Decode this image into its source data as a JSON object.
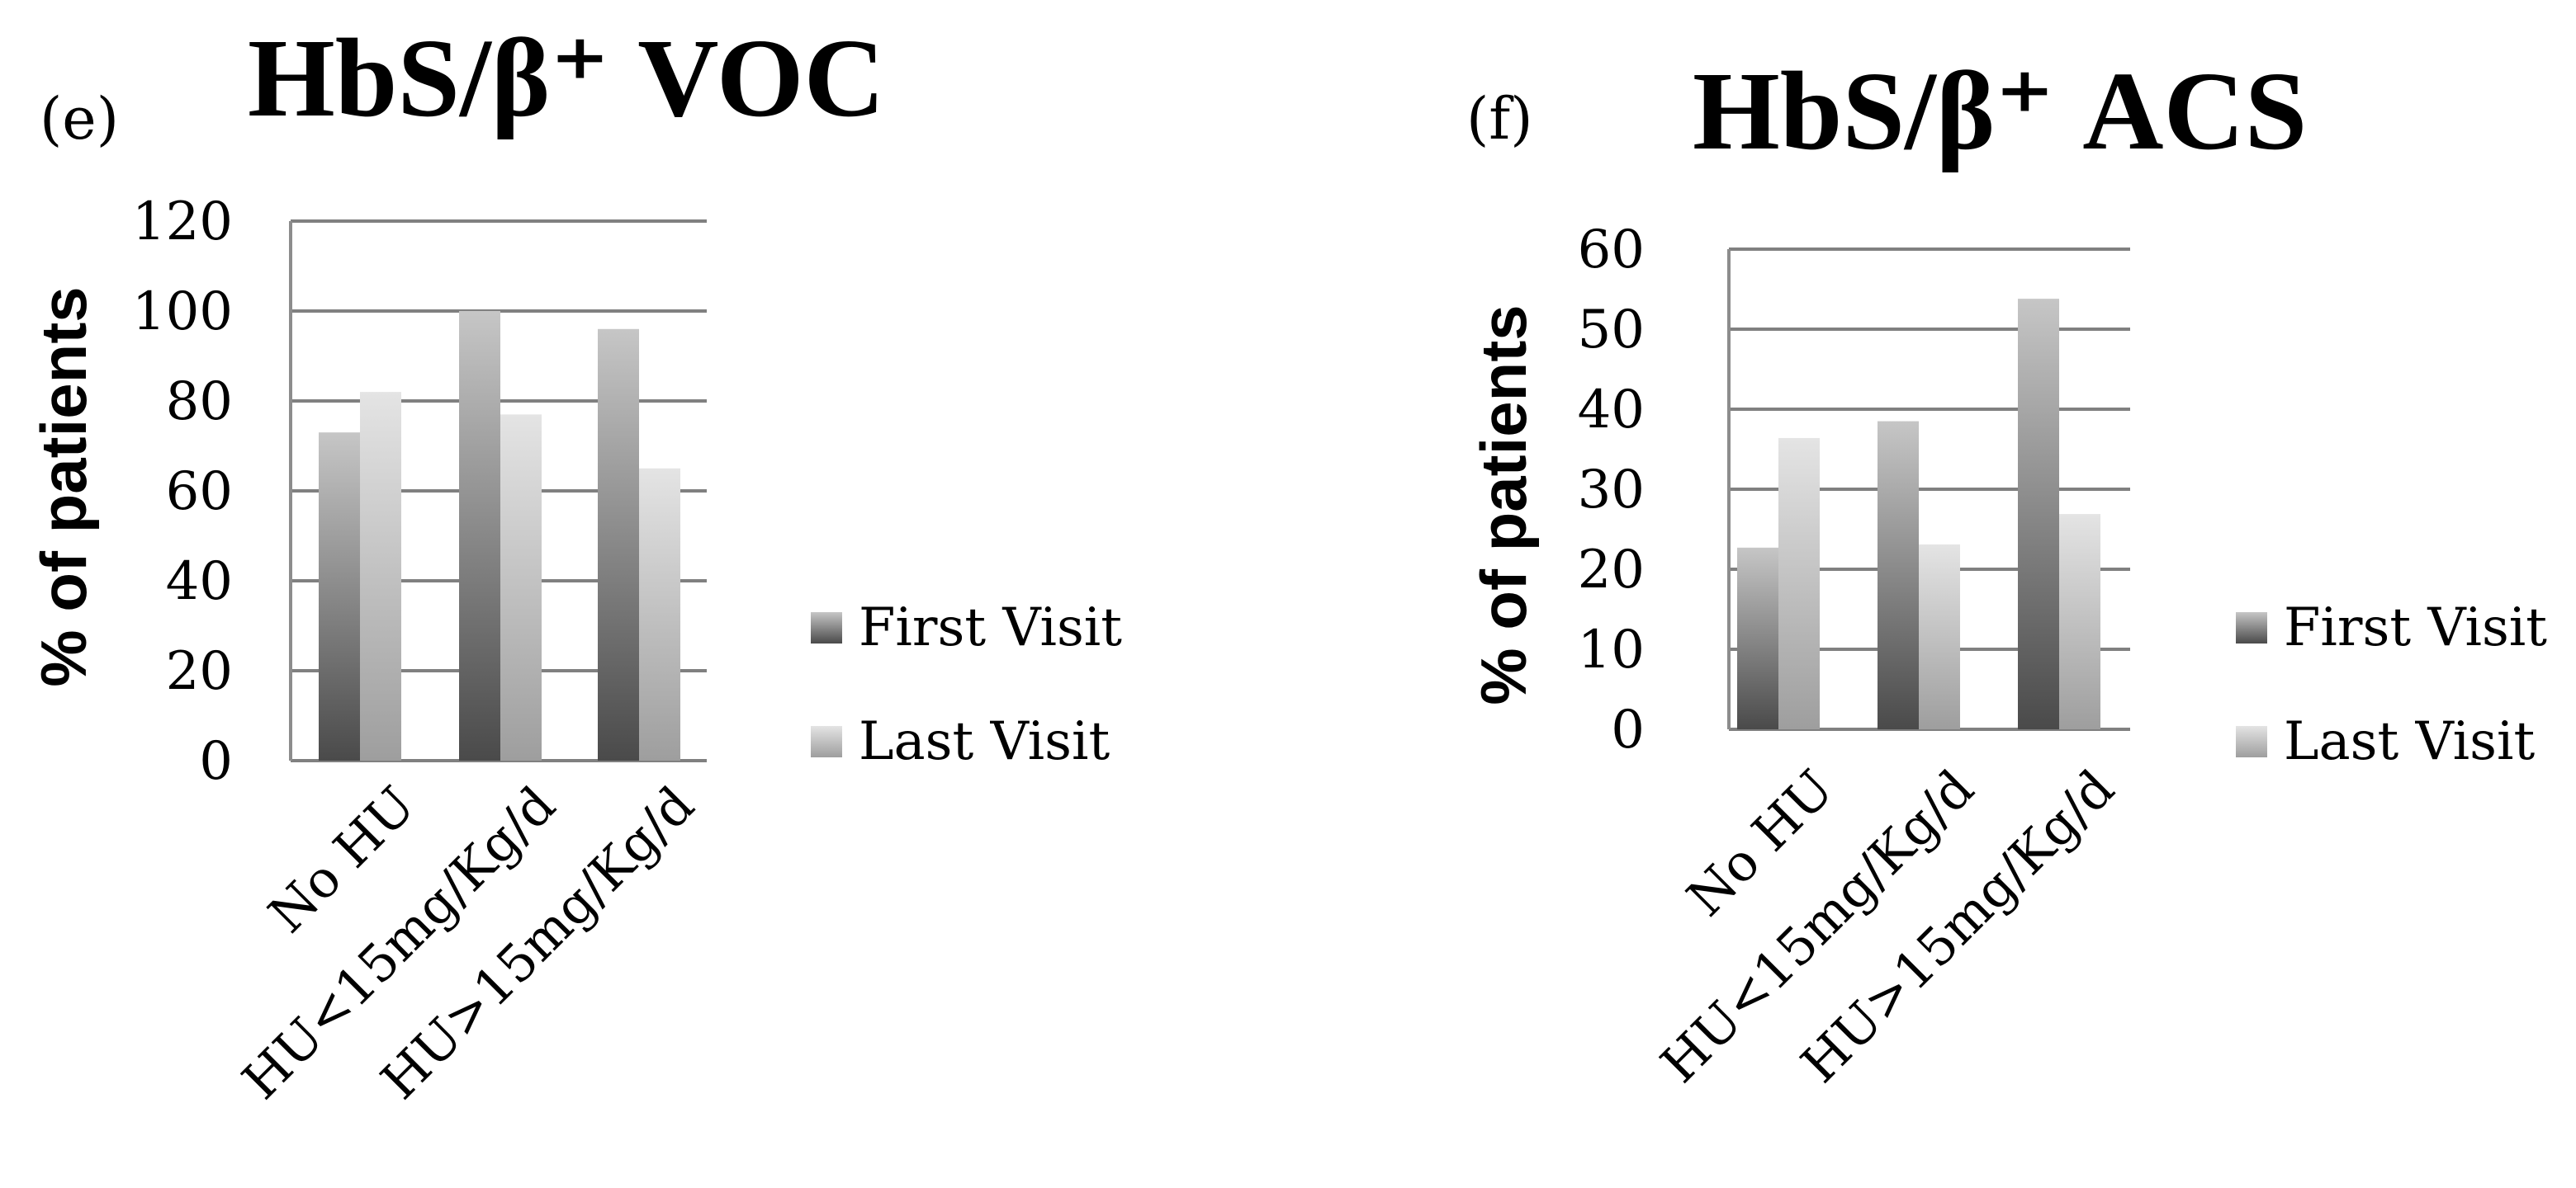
{
  "legend": {
    "first_label": "First Visit",
    "last_label": "Last Visit"
  },
  "colors": {
    "gridline": "#808080",
    "axis": "#8c8c8c",
    "first_dark": "#4a4a4a",
    "first_light": "#c6c6c6",
    "last_dark": "#9e9e9e",
    "last_light": "#e4e4e4",
    "text": "#000000"
  },
  "chart_data": [
    {
      "panel_label": "(e)",
      "type": "bar",
      "title": "HbS/β⁺ VOC",
      "ylabel": "% of patients",
      "xlabel": "",
      "categories": [
        "No HU",
        "HU<15mg/Kg/d",
        "HU>15mg/Kg/d"
      ],
      "ylim": [
        0,
        120
      ],
      "yticks": [
        "0",
        "20",
        "40",
        "60",
        "80",
        "100",
        "120"
      ],
      "grid": true,
      "legend_position": "right",
      "series": [
        {
          "name": "First Visit",
          "values": [
            73,
            100,
            96
          ]
        },
        {
          "name": "Last Visit",
          "values": [
            82,
            77,
            65
          ]
        }
      ]
    },
    {
      "panel_label": "(f)",
      "type": "bar",
      "title": "HbS/β⁺ ACS",
      "ylabel": "% of patients",
      "xlabel": "",
      "categories": [
        "No HU",
        "HU<15mg/Kg/d",
        "HU>15mg/Kg/d"
      ],
      "ylim": [
        0,
        60
      ],
      "yticks": [
        "0",
        "10",
        "20",
        "30",
        "40",
        "50",
        "60"
      ],
      "grid": true,
      "legend_position": "right",
      "series": [
        {
          "name": "First Visit",
          "values": [
            22.7,
            38.5,
            53.8
          ]
        },
        {
          "name": "Last Visit",
          "values": [
            36.4,
            23.1,
            26.9
          ]
        }
      ]
    }
  ]
}
